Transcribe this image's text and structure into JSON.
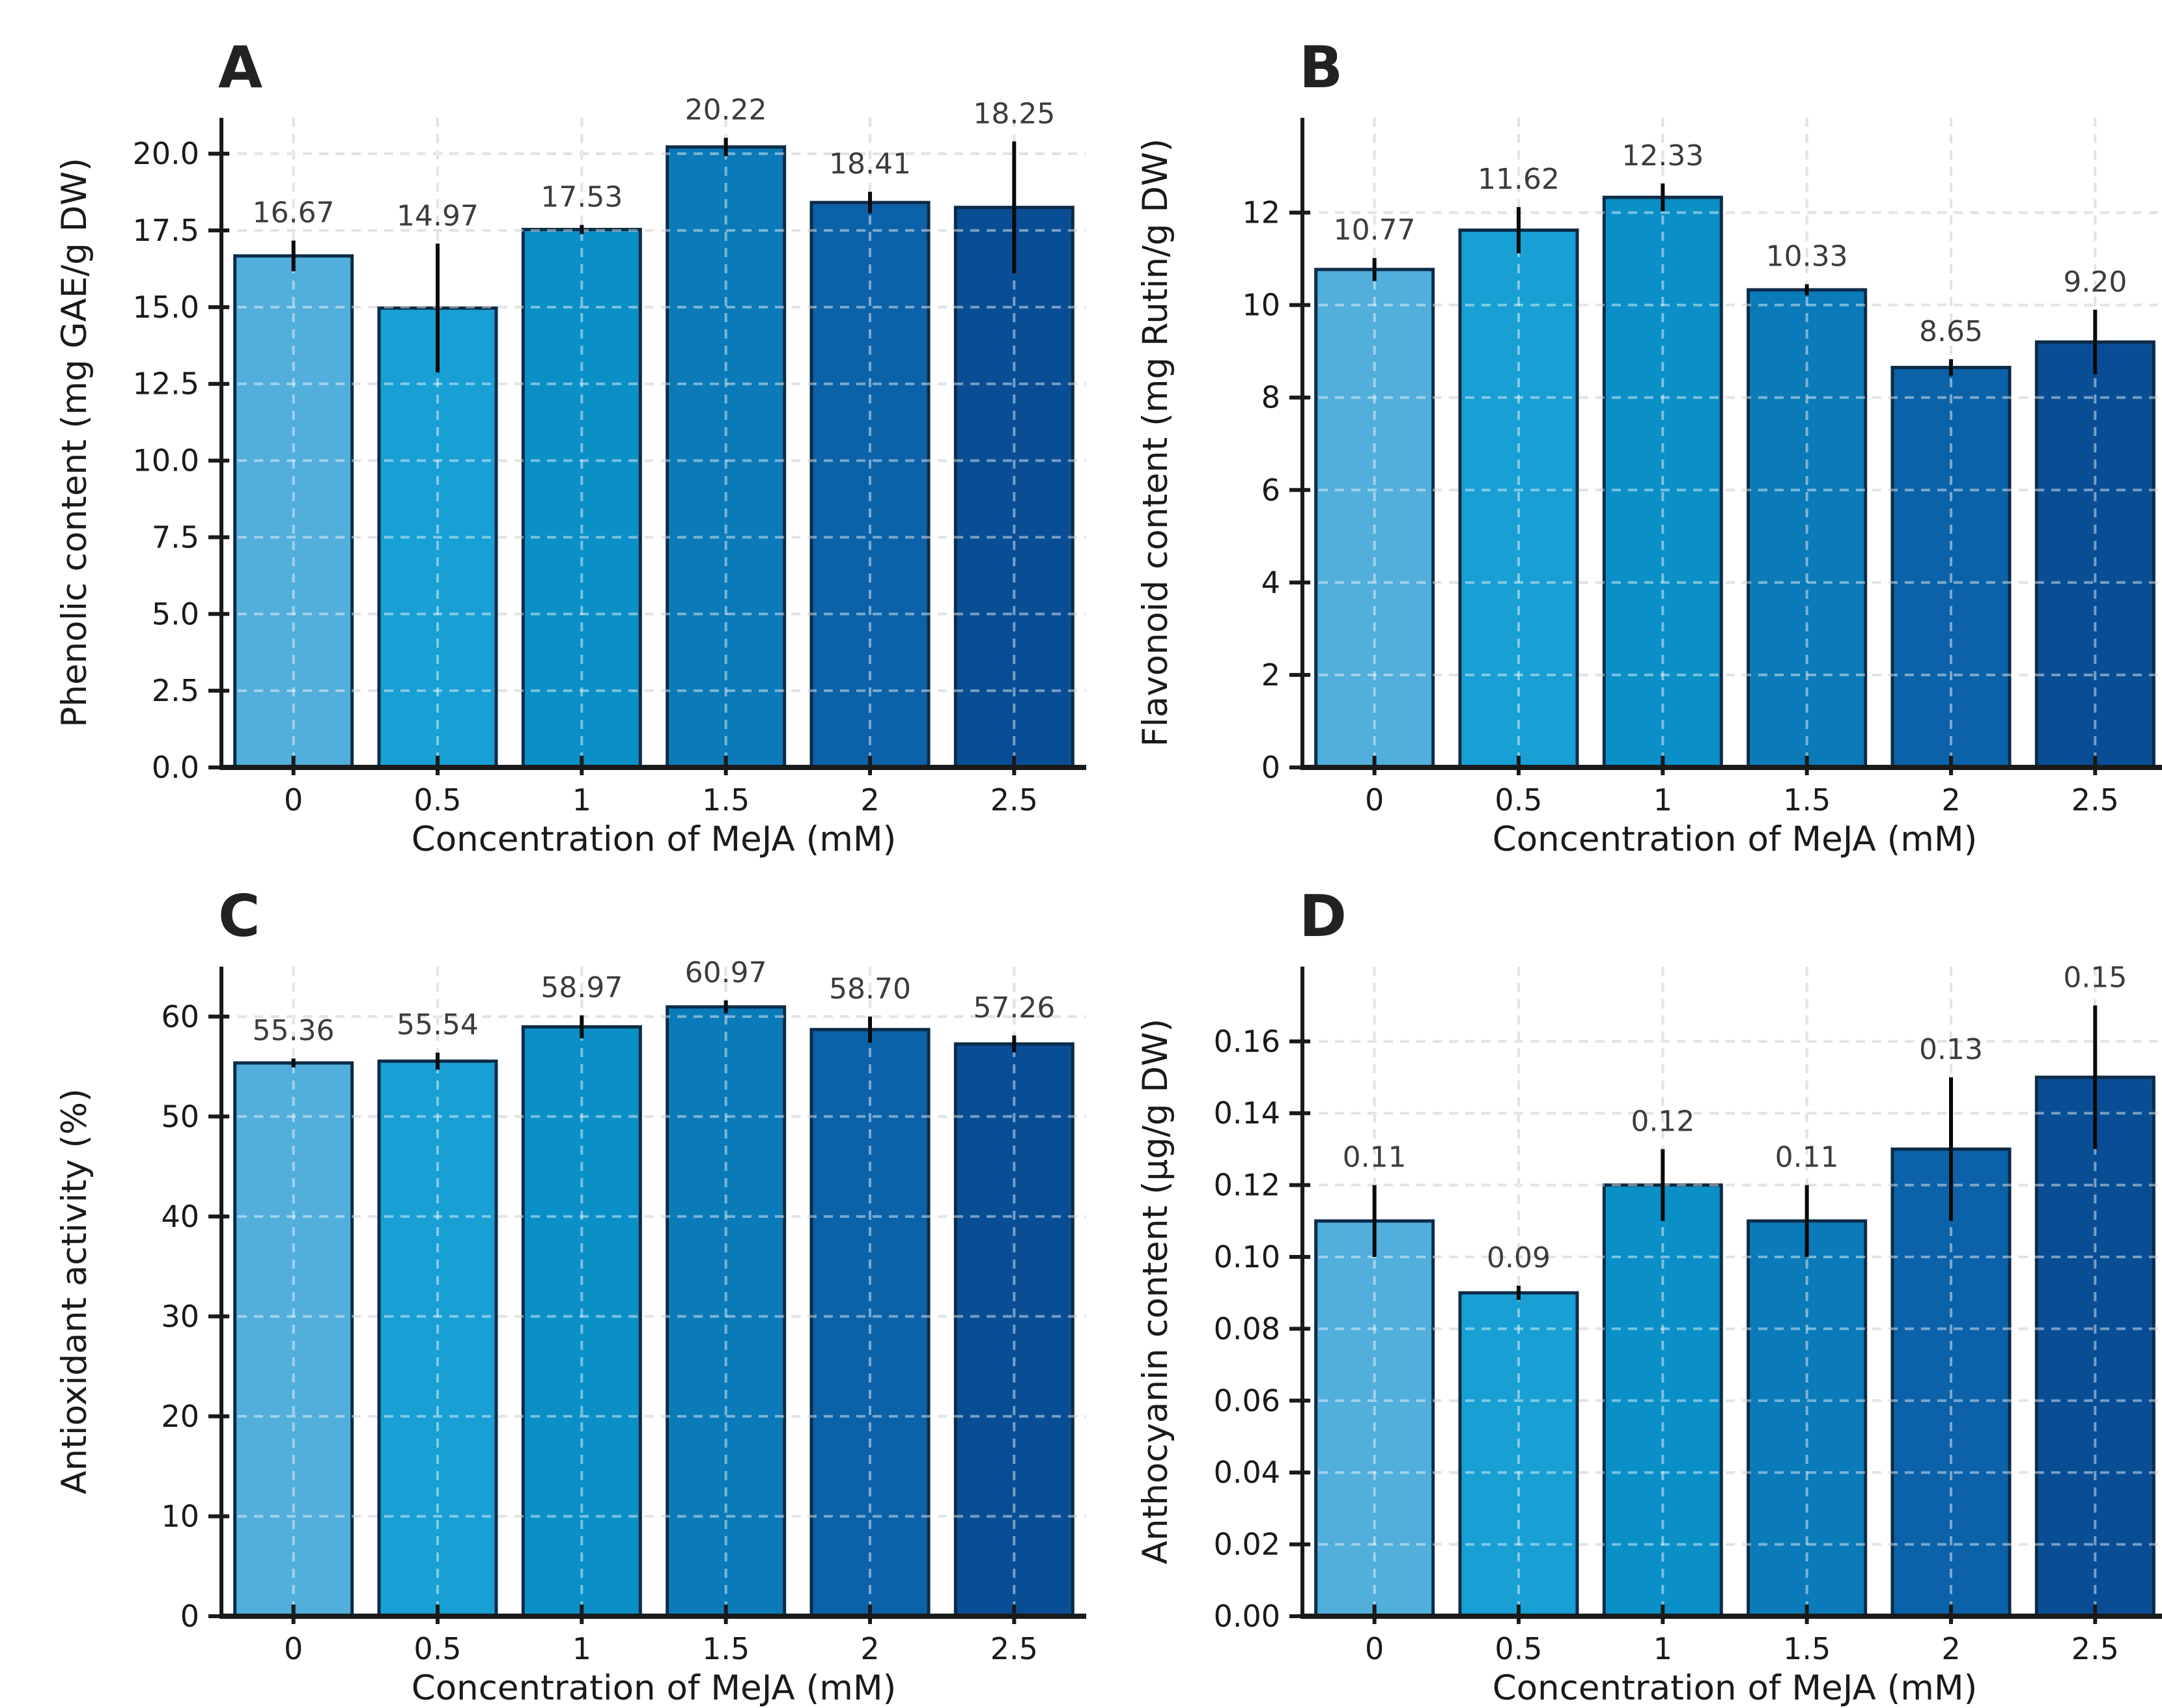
{
  "figure": {
    "background": "#ffffff",
    "bar_colors": [
      "#52aedb",
      "#189fd4",
      "#0b8fc7",
      "#0b7ab8",
      "#0b62a8",
      "#094e95"
    ],
    "bar_edge_color": "#0c2b47",
    "error_color": "#0a0a0a",
    "grid_base_color": "#cdcdcd",
    "grid_overlay_color": "#ffffff",
    "axis_color": "#1a1a1a",
    "tick_label_color": "#1a1a1a",
    "value_label_color": "#3c3c3c",
    "panel_letter_color": "#222222"
  },
  "chart_data": [
    {
      "type": "bar",
      "panel": "A",
      "ylabel": "Phenolic content (mg GAE/g DW)",
      "xlabel": "Concentration of MeJA (mM)",
      "categories": [
        "0",
        "0.5",
        "1",
        "1.5",
        "2",
        "2.5"
      ],
      "values": [
        16.67,
        14.97,
        17.53,
        20.22,
        18.41,
        18.25
      ],
      "errors": [
        0.5,
        2.1,
        0.15,
        0.3,
        0.35,
        2.15
      ],
      "value_labels": [
        "16.67",
        "14.97",
        "17.53",
        "20.22",
        "18.41",
        "18.25"
      ],
      "yticks": [
        0,
        2.5,
        5,
        7.5,
        10,
        12.5,
        15,
        17.5,
        20
      ],
      "ytick_labels": [
        "0.0",
        "2.5",
        "5.0",
        "7.5",
        "10.0",
        "12.5",
        "15.0",
        "17.5",
        "20.0"
      ],
      "ylim": [
        0,
        21.17
      ],
      "grid": true,
      "legend": null
    },
    {
      "type": "bar",
      "panel": "B",
      "ylabel": "Flavonoid content (mg Rutin/g DW)",
      "xlabel": "Concentration of MeJA (mM)",
      "categories": [
        "0",
        "0.5",
        "1",
        "1.5",
        "2",
        "2.5"
      ],
      "values": [
        10.77,
        11.62,
        12.33,
        10.33,
        8.65,
        9.2
      ],
      "errors": [
        0.25,
        0.5,
        0.3,
        0.12,
        0.18,
        0.7
      ],
      "value_labels": [
        "10.77",
        "11.62",
        "12.33",
        "10.33",
        "8.65",
        "9.20"
      ],
      "yticks": [
        0,
        2,
        4,
        6,
        8,
        10,
        12
      ],
      "ytick_labels": [
        "0",
        "2",
        "4",
        "6",
        "8",
        "10",
        "12"
      ],
      "ylim": [
        0,
        14.05
      ],
      "grid": true,
      "legend": null
    },
    {
      "type": "bar",
      "panel": "C",
      "ylabel": "Antioxidant activity (%)",
      "xlabel": "Concentration of MeJA (mM)",
      "categories": [
        "0",
        "0.5",
        "1",
        "1.5",
        "2",
        "2.5"
      ],
      "values": [
        55.36,
        55.54,
        58.97,
        60.97,
        58.7,
        57.26
      ],
      "errors": [
        0.45,
        0.85,
        1.15,
        0.65,
        1.3,
        0.85
      ],
      "value_labels": [
        "55.36",
        "55.54",
        "58.97",
        "60.97",
        "58.70",
        "57.26"
      ],
      "yticks": [
        0,
        10,
        20,
        30,
        40,
        50,
        60
      ],
      "ytick_labels": [
        "0",
        "10",
        "20",
        "30",
        "40",
        "50",
        "60"
      ],
      "ylim": [
        0,
        65.0
      ],
      "grid": true,
      "legend": null
    },
    {
      "type": "bar",
      "panel": "D",
      "ylabel": "Anthocyanin content (µg/g DW)",
      "xlabel": "Concentration of MeJA (mM)",
      "categories": [
        "0",
        "0.5",
        "1",
        "1.5",
        "2",
        "2.5"
      ],
      "values": [
        0.11,
        0.09,
        0.12,
        0.11,
        0.13,
        0.15
      ],
      "errors": [
        0.01,
        0.002,
        0.01,
        0.01,
        0.02,
        0.02
      ],
      "value_labels": [
        "0.11",
        "0.09",
        "0.12",
        "0.11",
        "0.13",
        "0.15"
      ],
      "yticks": [
        0,
        0.02,
        0.04,
        0.06,
        0.08,
        0.1,
        0.12,
        0.14,
        0.16
      ],
      "ytick_labels": [
        "0.00",
        "0.02",
        "0.04",
        "0.06",
        "0.08",
        "0.10",
        "0.12",
        "0.14",
        "0.16"
      ],
      "ylim": [
        0,
        0.1808
      ],
      "grid": true,
      "legend": null
    }
  ]
}
